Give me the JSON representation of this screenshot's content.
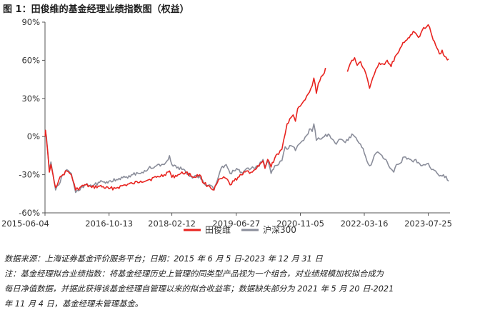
{
  "title": "图 1：田俊维的基金经理业绩指数图（权益）",
  "chart_data": {
    "type": "line",
    "title": "图 1：田俊维的基金经理业绩指数图（权益）",
    "xlabel": "",
    "ylabel": "",
    "ylim": [
      -0.6,
      0.9
    ],
    "yticks": [
      0.9,
      0.6,
      0.3,
      0.0,
      -0.3,
      -0.6
    ],
    "ytick_labels": [
      "90%",
      "60%",
      "30%",
      "0%",
      "-30%",
      "-60%"
    ],
    "xlim": [
      "2015-06-04",
      "2024-01-10"
    ],
    "xticks": [
      "2015-06-04",
      "2016-10-13",
      "2018-02-12",
      "2019-06-27",
      "2020-11-05",
      "2022-03-16",
      "2023-07-25"
    ],
    "grid": false,
    "legend_position": "bottom-center",
    "series": [
      {
        "name": "田俊维",
        "color": "#e8231f",
        "segments": [
          [
            [
              "2015-06-05",
              0.0
            ],
            [
              "2015-06-08",
              0.05
            ],
            [
              "2015-06-15",
              -0.02
            ],
            [
              "2015-06-25",
              -0.12
            ],
            [
              "2015-07-08",
              -0.28
            ],
            [
              "2015-07-20",
              -0.22
            ],
            [
              "2015-08-05",
              -0.3
            ],
            [
              "2015-08-25",
              -0.4
            ],
            [
              "2015-09-20",
              -0.34
            ],
            [
              "2015-10-20",
              -0.3
            ],
            [
              "2015-11-20",
              -0.27
            ],
            [
              "2015-12-25",
              -0.3
            ],
            [
              "2016-01-28",
              -0.42
            ],
            [
              "2016-03-01",
              -0.4
            ],
            [
              "2016-04-15",
              -0.38
            ],
            [
              "2016-06-01",
              -0.4
            ],
            [
              "2016-08-01",
              -0.39
            ],
            [
              "2016-10-13",
              -0.41
            ],
            [
              "2016-12-20",
              -0.4
            ],
            [
              "2017-02-15",
              -0.38
            ],
            [
              "2017-04-15",
              -0.37
            ],
            [
              "2017-06-15",
              -0.35
            ],
            [
              "2017-08-15",
              -0.34
            ],
            [
              "2017-10-15",
              -0.32
            ],
            [
              "2017-12-15",
              -0.3
            ],
            [
              "2018-01-25",
              -0.27
            ],
            [
              "2018-02-12",
              -0.32
            ],
            [
              "2018-04-01",
              -0.3
            ],
            [
              "2018-06-01",
              -0.28
            ],
            [
              "2018-08-01",
              -0.32
            ],
            [
              "2018-09-15",
              -0.3
            ],
            [
              "2018-10-20",
              -0.37
            ],
            [
              "2018-12-01",
              -0.39
            ],
            [
              "2019-01-05",
              -0.42
            ],
            [
              "2019-02-01",
              -0.36
            ],
            [
              "2019-03-01",
              -0.33
            ],
            [
              "2019-04-10",
              -0.33
            ],
            [
              "2019-05-10",
              -0.38
            ],
            [
              "2019-06-10",
              -0.35
            ],
            [
              "2019-07-10",
              -0.32
            ],
            [
              "2019-08-15",
              -0.3
            ],
            [
              "2019-09-15",
              -0.27
            ],
            [
              "2019-10-20",
              -0.28
            ],
            [
              "2019-11-20",
              -0.26
            ],
            [
              "2019-12-31",
              -0.21
            ],
            [
              "2020-01-20",
              -0.19
            ],
            [
              "2020-02-05",
              -0.25
            ],
            [
              "2020-02-25",
              -0.18
            ],
            [
              "2020-03-23",
              -0.24
            ],
            [
              "2020-04-20",
              -0.17
            ],
            [
              "2020-05-20",
              -0.14
            ],
            [
              "2020-06-15",
              -0.1
            ],
            [
              "2020-07-10",
              0.02
            ],
            [
              "2020-07-25",
              0.1
            ],
            [
              "2020-08-15",
              0.14
            ],
            [
              "2020-09-10",
              0.17
            ],
            [
              "2020-09-28",
              0.12
            ],
            [
              "2020-10-15",
              0.22
            ],
            [
              "2020-11-05",
              0.24
            ],
            [
              "2020-12-01",
              0.28
            ],
            [
              "2020-12-25",
              0.32
            ],
            [
              "2021-01-15",
              0.35
            ],
            [
              "2021-02-05",
              0.4
            ],
            [
              "2021-02-18",
              0.46
            ],
            [
              "2021-03-09",
              0.34
            ],
            [
              "2021-03-25",
              0.42
            ],
            [
              "2021-04-15",
              0.47
            ],
            [
              "2021-05-10",
              0.5
            ],
            [
              "2021-05-19",
              0.54
            ]
          ],
          [
            [
              "2021-11-05",
              0.51
            ],
            [
              "2021-11-25",
              0.57
            ],
            [
              "2021-12-10",
              0.6
            ],
            [
              "2021-12-31",
              0.62
            ],
            [
              "2022-01-20",
              0.56
            ],
            [
              "2022-02-15",
              0.59
            ],
            [
              "2022-03-16",
              0.53
            ],
            [
              "2022-04-10",
              0.45
            ],
            [
              "2022-04-26",
              0.38
            ],
            [
              "2022-05-20",
              0.46
            ],
            [
              "2022-06-15",
              0.53
            ],
            [
              "2022-07-10",
              0.58
            ],
            [
              "2022-08-10",
              0.57
            ],
            [
              "2022-09-10",
              0.6
            ],
            [
              "2022-10-10",
              0.55
            ],
            [
              "2022-11-10",
              0.63
            ],
            [
              "2022-12-10",
              0.67
            ],
            [
              "2023-01-10",
              0.74
            ],
            [
              "2023-02-10",
              0.76
            ],
            [
              "2023-03-10",
              0.8
            ],
            [
              "2023-04-10",
              0.82
            ],
            [
              "2023-05-10",
              0.78
            ],
            [
              "2023-06-10",
              0.84
            ],
            [
              "2023-07-10",
              0.86
            ],
            [
              "2023-07-25",
              0.88
            ],
            [
              "2023-08-15",
              0.82
            ],
            [
              "2023-09-01",
              0.76
            ],
            [
              "2023-09-20",
              0.72
            ],
            [
              "2023-10-20",
              0.65
            ],
            [
              "2023-11-10",
              0.68
            ],
            [
              "2023-11-30",
              0.63
            ],
            [
              "2023-12-31",
              0.61
            ]
          ]
        ]
      },
      {
        "name": "沪深300",
        "color": "#8a8d9a",
        "segments": [
          [
            [
              "2015-06-05",
              0.0
            ],
            [
              "2015-06-08",
              0.04
            ],
            [
              "2015-06-15",
              0.0
            ],
            [
              "2015-06-25",
              -0.12
            ],
            [
              "2015-07-08",
              -0.26
            ],
            [
              "2015-07-20",
              -0.2
            ],
            [
              "2015-08-05",
              -0.3
            ],
            [
              "2015-08-25",
              -0.42
            ],
            [
              "2015-09-20",
              -0.38
            ],
            [
              "2015-10-20",
              -0.3
            ],
            [
              "2015-11-20",
              -0.26
            ],
            [
              "2015-12-25",
              -0.29
            ],
            [
              "2016-01-28",
              -0.44
            ],
            [
              "2016-03-01",
              -0.42
            ],
            [
              "2016-04-15",
              -0.38
            ],
            [
              "2016-06-01",
              -0.39
            ],
            [
              "2016-08-01",
              -0.36
            ],
            [
              "2016-10-13",
              -0.35
            ],
            [
              "2016-12-20",
              -0.34
            ],
            [
              "2017-02-15",
              -0.32
            ],
            [
              "2017-04-15",
              -0.3
            ],
            [
              "2017-06-15",
              -0.29
            ],
            [
              "2017-08-15",
              -0.25
            ],
            [
              "2017-10-15",
              -0.23
            ],
            [
              "2017-12-15",
              -0.22
            ],
            [
              "2018-01-25",
              -0.15
            ],
            [
              "2018-02-12",
              -0.22
            ],
            [
              "2018-04-01",
              -0.24
            ],
            [
              "2018-06-01",
              -0.28
            ],
            [
              "2018-08-01",
              -0.32
            ],
            [
              "2018-09-15",
              -0.31
            ],
            [
              "2018-10-20",
              -0.37
            ],
            [
              "2018-12-01",
              -0.38
            ],
            [
              "2019-01-05",
              -0.42
            ],
            [
              "2019-02-01",
              -0.34
            ],
            [
              "2019-03-01",
              -0.25
            ],
            [
              "2019-04-10",
              -0.22
            ],
            [
              "2019-05-10",
              -0.29
            ],
            [
              "2019-06-10",
              -0.27
            ],
            [
              "2019-07-10",
              -0.26
            ],
            [
              "2019-08-15",
              -0.29
            ],
            [
              "2019-09-15",
              -0.25
            ],
            [
              "2019-10-20",
              -0.25
            ],
            [
              "2019-11-20",
              -0.25
            ],
            [
              "2019-12-31",
              -0.2
            ],
            [
              "2020-01-20",
              -0.18
            ],
            [
              "2020-02-05",
              -0.24
            ],
            [
              "2020-02-25",
              -0.19
            ],
            [
              "2020-03-23",
              -0.29
            ],
            [
              "2020-04-20",
              -0.23
            ],
            [
              "2020-05-20",
              -0.22
            ],
            [
              "2020-06-15",
              -0.19
            ],
            [
              "2020-07-10",
              -0.08
            ],
            [
              "2020-07-25",
              -0.1
            ],
            [
              "2020-08-15",
              -0.07
            ],
            [
              "2020-09-10",
              -0.08
            ],
            [
              "2020-09-28",
              -0.11
            ],
            [
              "2020-10-15",
              -0.07
            ],
            [
              "2020-11-05",
              -0.05
            ],
            [
              "2020-12-01",
              -0.03
            ],
            [
              "2020-12-25",
              0.01
            ],
            [
              "2021-01-15",
              0.06
            ],
            [
              "2021-02-05",
              0.04
            ],
            [
              "2021-02-18",
              0.1
            ],
            [
              "2021-03-09",
              -0.03
            ],
            [
              "2021-03-25",
              -0.01
            ],
            [
              "2021-04-15",
              -0.02
            ],
            [
              "2021-05-10",
              0.0
            ],
            [
              "2021-06-10",
              0.02
            ],
            [
              "2021-07-10",
              -0.02
            ],
            [
              "2021-08-10",
              -0.06
            ],
            [
              "2021-09-10",
              -0.02
            ],
            [
              "2021-10-10",
              -0.04
            ],
            [
              "2021-11-10",
              -0.03
            ],
            [
              "2021-12-10",
              0.02
            ],
            [
              "2021-12-31",
              0.0
            ],
            [
              "2022-01-20",
              -0.03
            ],
            [
              "2022-02-15",
              -0.06
            ],
            [
              "2022-03-16",
              -0.13
            ],
            [
              "2022-04-26",
              -0.23
            ],
            [
              "2022-05-20",
              -0.19
            ],
            [
              "2022-06-15",
              -0.13
            ],
            [
              "2022-07-10",
              -0.13
            ],
            [
              "2022-08-10",
              -0.17
            ],
            [
              "2022-09-10",
              -0.2
            ],
            [
              "2022-10-31",
              -0.28
            ],
            [
              "2022-11-20",
              -0.22
            ],
            [
              "2022-12-20",
              -0.21
            ],
            [
              "2023-01-20",
              -0.16
            ],
            [
              "2023-02-20",
              -0.17
            ],
            [
              "2023-03-20",
              -0.19
            ],
            [
              "2023-04-20",
              -0.18
            ],
            [
              "2023-05-30",
              -0.23
            ],
            [
              "2023-06-20",
              -0.22
            ],
            [
              "2023-07-25",
              -0.21
            ],
            [
              "2023-08-20",
              -0.26
            ],
            [
              "2023-09-20",
              -0.27
            ],
            [
              "2023-10-20",
              -0.31
            ],
            [
              "2023-11-20",
              -0.3
            ],
            [
              "2023-12-31",
              -0.35
            ]
          ]
        ]
      }
    ]
  },
  "notes": [
    "数据来源：上海证券基金评价服务平台；日期：2015 年 6 月 5 日-2023 年 12 月 31 日",
    "注：基金经理拟合业绩指数：将基金经理历史上管理的同类型产品视为一个组合，对业绩规模加权拟合成为",
    "每日净值数据，并据此获得该基金经理自管理以来的拟合收益率；数据缺失部分为 2021 年 5 月 20 日-2021",
    "年 11 月 4 日，基金经理未管理基金。"
  ]
}
